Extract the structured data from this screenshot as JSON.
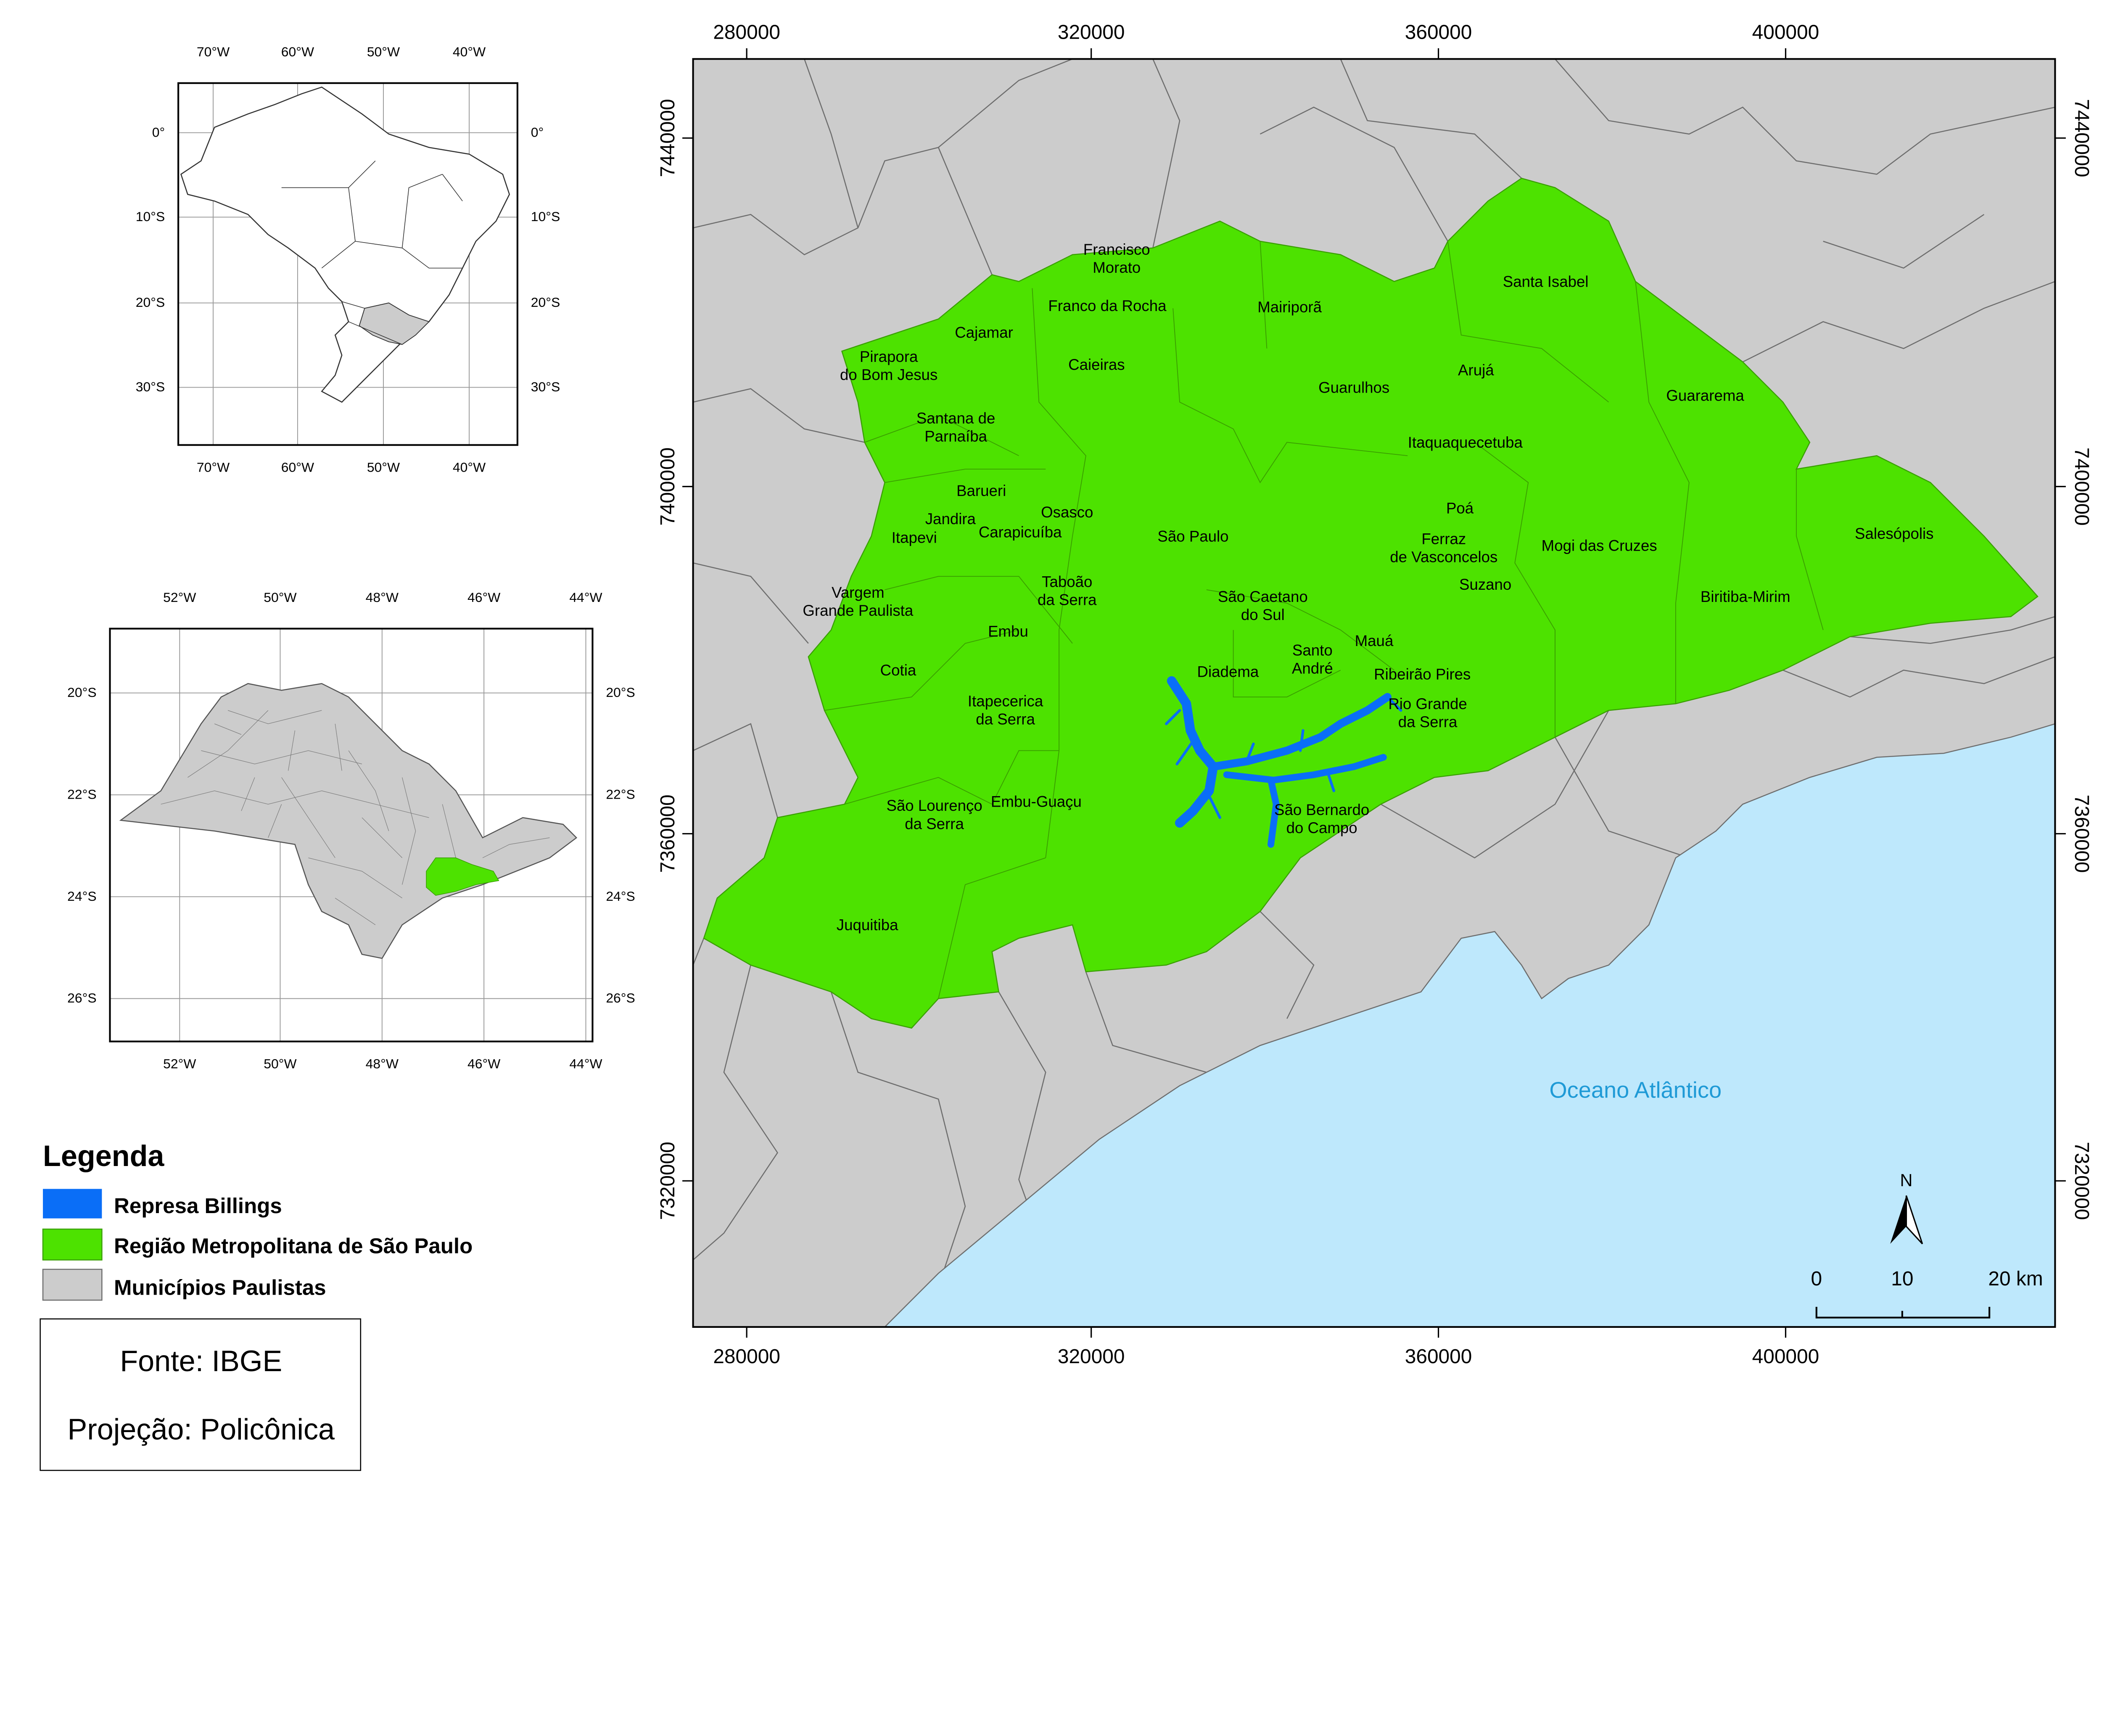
{
  "main_map": {
    "x_ticks": [
      "280000",
      "320000",
      "360000",
      "400000"
    ],
    "y_ticks": [
      "7440000",
      "7400000",
      "7360000",
      "7320000"
    ],
    "ocean_label": "Oceano Atlântico",
    "municipalities": [
      [
        "Francisco",
        "Morato"
      ],
      [
        "Franco da Rocha"
      ],
      [
        "Mairiporã"
      ],
      [
        "Santa Isabel"
      ],
      [
        "Cajamar"
      ],
      [
        "Pirapora",
        "do Bom Jesus"
      ],
      [
        "Caieiras"
      ],
      [
        "Guarulhos"
      ],
      [
        "Arujá"
      ],
      [
        "Guararema"
      ],
      [
        "Itaquaquecetuba"
      ],
      [
        "Santana de",
        "Parnaíba"
      ],
      [
        "Barueri"
      ],
      [
        "Osasco"
      ],
      [
        "Jandira"
      ],
      [
        "Poá"
      ],
      [
        "Itapevi"
      ],
      [
        "Carapicuíba"
      ],
      [
        "São Paulo"
      ],
      [
        "Ferraz",
        "de Vasconcelos"
      ],
      [
        "Mogi das Cruzes"
      ],
      [
        "Salesópolis"
      ],
      [
        "Suzano"
      ],
      [
        "Taboão",
        "da Serra"
      ],
      [
        "Vargem",
        "Grande Paulista"
      ],
      [
        "São Caetano",
        "do Sul"
      ],
      [
        "Biritiba-Mirim"
      ],
      [
        "Embu"
      ],
      [
        "Mauá"
      ],
      [
        "Santo",
        "André"
      ],
      [
        "Cotia"
      ],
      [
        "Diadema"
      ],
      [
        "Ribeirão Pires"
      ],
      [
        "Itapecerica",
        "da Serra"
      ],
      [
        "Rio Grande",
        "da Serra"
      ],
      [
        "São Lourenço",
        "da Serra"
      ],
      [
        "Embu-Guaçu"
      ],
      [
        "São Bernardo",
        "do Campo"
      ],
      [
        "Juquitiba"
      ]
    ],
    "north_label": "N",
    "scale_bar": {
      "labels": [
        "0",
        "10",
        "20 km"
      ]
    },
    "colors": {
      "rmsp": "#4de200",
      "billings": "#0a6ef7",
      "municipios": "#cccccc",
      "ocean": "#bee8fc",
      "ocean_label": "#1f9ad6"
    }
  },
  "inset_brazil": {
    "lon_ticks": [
      "70°W",
      "60°W",
      "50°W",
      "40°W"
    ],
    "lat_ticks": [
      "0°",
      "10°S",
      "20°S",
      "30°S"
    ]
  },
  "inset_sp": {
    "lon_ticks": [
      "52°W",
      "50°W",
      "48°W",
      "46°W",
      "44°W"
    ],
    "lat_ticks": [
      "20°S",
      "22°S",
      "24°S",
      "26°S"
    ]
  },
  "legend": {
    "title": "Legenda",
    "items": [
      {
        "label": "Represa Billings",
        "color": "#0a6ef7"
      },
      {
        "label": "Região Metropolitana de São Paulo",
        "color": "#4de200"
      },
      {
        "label": "Municípios Paulistas",
        "color": "#cccccc"
      }
    ]
  },
  "source_box": {
    "source": "Fonte: IBGE",
    "projection": "Projeção: Policônica"
  }
}
